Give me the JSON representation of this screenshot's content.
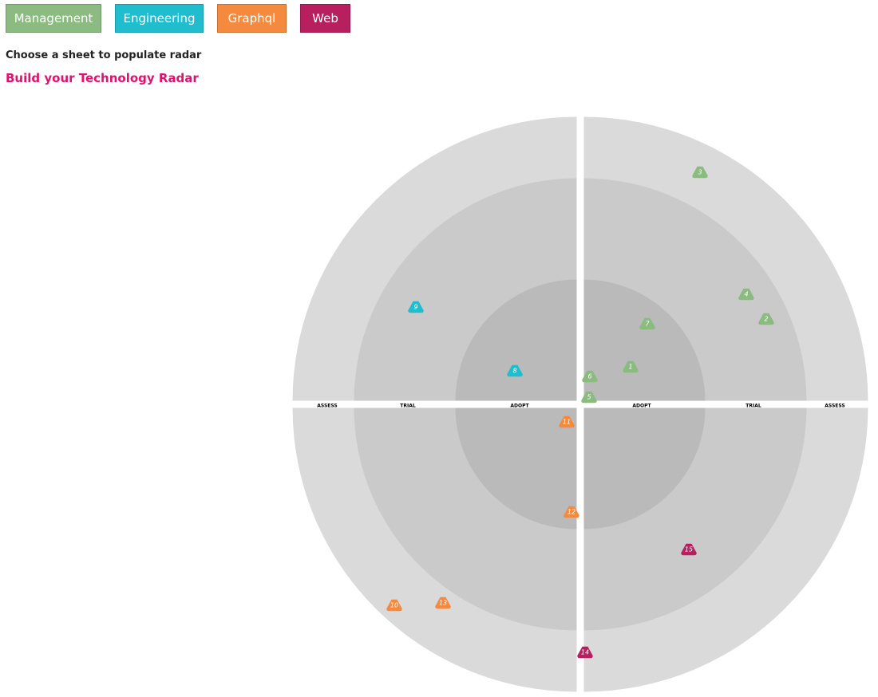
{
  "header": {
    "buttons": [
      {
        "label": "Management",
        "color": "#8bbb80"
      },
      {
        "label": "Engineering",
        "color": "#1fbdcd"
      },
      {
        "label": "Graphql",
        "color": "#f38a3e"
      },
      {
        "label": "Web",
        "color": "#b81f5e"
      }
    ],
    "subtitle": "Choose a sheet to populate radar",
    "title": "Build your Technology Radar"
  },
  "radar": {
    "ring_labels_left": [
      "ASSESS",
      "TRIAL",
      "ADOPT"
    ],
    "ring_labels_right": [
      "ADOPT",
      "TRIAL",
      "ASSESS"
    ],
    "ring_colors": [
      "#dadada",
      "#cacaca",
      "#bababa"
    ],
    "blips": [
      {
        "number": "1",
        "color": "#8bbb80"
      },
      {
        "number": "2",
        "color": "#8bbb80"
      },
      {
        "number": "3",
        "color": "#8bbb80"
      },
      {
        "number": "4",
        "color": "#8bbb80"
      },
      {
        "number": "5",
        "color": "#8bbb80"
      },
      {
        "number": "6",
        "color": "#8bbb80"
      },
      {
        "number": "7",
        "color": "#8bbb80"
      },
      {
        "number": "8",
        "color": "#1fbdcd"
      },
      {
        "number": "9",
        "color": "#1fbdcd"
      },
      {
        "number": "10",
        "color": "#f38a3e"
      },
      {
        "number": "11",
        "color": "#f38a3e"
      },
      {
        "number": "12",
        "color": "#f38a3e"
      },
      {
        "number": "13",
        "color": "#f38a3e"
      },
      {
        "number": "14",
        "color": "#b81f5e"
      },
      {
        "number": "15",
        "color": "#b81f5e"
      }
    ]
  }
}
